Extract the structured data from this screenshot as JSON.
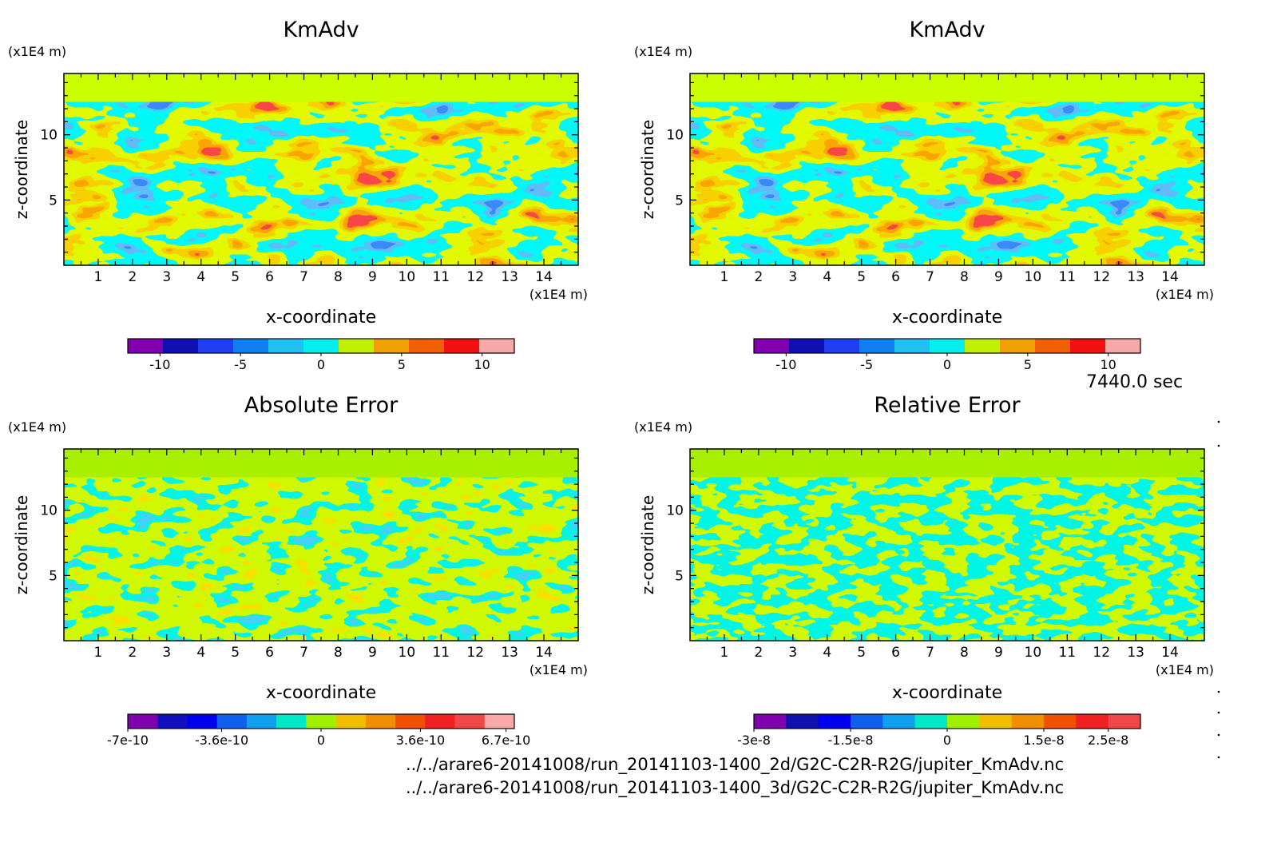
{
  "chart_data": [
    {
      "type": "heatmap",
      "title": "KmAdv",
      "xlabel": "x-coordinate",
      "ylabel": "z-coordinate",
      "x_unit": "(x1E4 m)",
      "z_unit": "(x1E4 m)",
      "x_ticks": [
        "1",
        "2",
        "3",
        "4",
        "5",
        "6",
        "7",
        "8",
        "9",
        "10",
        "11",
        "12",
        "13",
        "14"
      ],
      "z_ticks": [
        "5",
        "10"
      ],
      "xlim": [
        0,
        15
      ],
      "zlim": [
        0,
        14.7
      ],
      "colorbar": {
        "colors": [
          "#8000b0",
          "#1010b0",
          "#1f3ff0",
          "#1080f0",
          "#20c0f0",
          "#00f0f0",
          "#c0f000",
          "#f0a000",
          "#f06000",
          "#f01010",
          "#f4a8a8"
        ],
        "tick_labels": [
          "-10",
          "-5",
          "0",
          "5",
          "10"
        ],
        "tick_values": [
          -10,
          -5,
          0,
          5,
          10
        ],
        "range": [
          -12,
          12
        ]
      }
    },
    {
      "type": "heatmap",
      "title": "KmAdv",
      "xlabel": "x-coordinate",
      "ylabel": "z-coordinate",
      "x_unit": "(x1E4 m)",
      "z_unit": "(x1E4 m)",
      "x_ticks": [
        "1",
        "2",
        "3",
        "4",
        "5",
        "6",
        "7",
        "8",
        "9",
        "10",
        "11",
        "12",
        "13",
        "14"
      ],
      "z_ticks": [
        "5",
        "10"
      ],
      "xlim": [
        0,
        15
      ],
      "zlim": [
        0,
        14.7
      ],
      "colorbar": {
        "colors": [
          "#8000b0",
          "#1010b0",
          "#1f3ff0",
          "#1080f0",
          "#20c0f0",
          "#00f0f0",
          "#c0f000",
          "#f0a000",
          "#f06000",
          "#f01010",
          "#f4a8a8"
        ],
        "tick_labels": [
          "-10",
          "-5",
          "0",
          "5",
          "10"
        ],
        "tick_values": [
          -10,
          -5,
          0,
          5,
          10
        ],
        "range": [
          -12,
          12
        ]
      }
    },
    {
      "type": "heatmap",
      "title": "Absolute Error",
      "xlabel": "x-coordinate",
      "ylabel": "z-coordinate",
      "x_unit": "(x1E4 m)",
      "z_unit": "(x1E4 m)",
      "x_ticks": [
        "1",
        "2",
        "3",
        "4",
        "5",
        "6",
        "7",
        "8",
        "9",
        "10",
        "11",
        "12",
        "13",
        "14"
      ],
      "z_ticks": [
        "5",
        "10"
      ],
      "xlim": [
        0,
        15
      ],
      "zlim": [
        0,
        14.7
      ],
      "colorbar": {
        "colors": [
          "#8000b0",
          "#1010c0",
          "#0000f0",
          "#1060f0",
          "#10a0f0",
          "#00e8c8",
          "#a0f000",
          "#f0c000",
          "#f09000",
          "#f05000",
          "#f02020",
          "#f04848",
          "#f8a8a8"
        ],
        "tick_labels": [
          "-7e-10",
          "-3.6e-10",
          "0",
          "3.6e-10",
          "6.7e-10"
        ],
        "tick_values": [
          -7e-10,
          -3.6e-10,
          0,
          3.6e-10,
          6.7e-10
        ],
        "range": [
          -7e-10,
          7e-10
        ]
      }
    },
    {
      "type": "heatmap",
      "title": "Relative Error",
      "xlabel": "x-coordinate",
      "ylabel": "z-coordinate",
      "x_unit": "(x1E4 m)",
      "z_unit": "(x1E4 m)",
      "x_ticks": [
        "1",
        "2",
        "3",
        "4",
        "5",
        "6",
        "7",
        "8",
        "9",
        "10",
        "11",
        "12",
        "13",
        "14"
      ],
      "z_ticks": [
        "5",
        "10"
      ],
      "xlim": [
        0,
        15
      ],
      "zlim": [
        0,
        14.7
      ],
      "colorbar": {
        "colors": [
          "#8000b0",
          "#1010b0",
          "#0000f0",
          "#1060f0",
          "#10a0f0",
          "#00e8c8",
          "#a0f000",
          "#f0c000",
          "#f09000",
          "#f05000",
          "#f02020",
          "#f04848"
        ],
        "tick_labels": [
          "-3e-8",
          "-1.5e-8",
          "0",
          "1.5e-8",
          "2.5e-8"
        ],
        "tick_values": [
          -3e-08,
          -1.5e-08,
          0,
          1.5e-08,
          2.5e-08
        ],
        "range": [
          -3e-08,
          3e-08
        ]
      }
    }
  ],
  "time_label": "7440.0 sec",
  "source_files": [
    "../../arare6-20141008/run_20141103-1400_2d/G2C-C2R-R2G/jupiter_KmAdv.nc",
    "../../arare6-20141008/run_20141103-1400_3d/G2C-C2R-R2G/jupiter_KmAdv.nc"
  ]
}
